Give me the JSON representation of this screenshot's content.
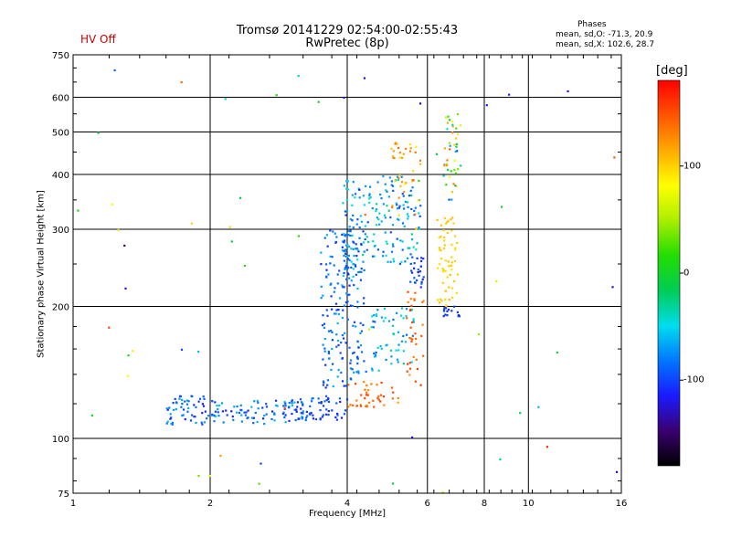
{
  "header": {
    "hv_status": "HV Off",
    "hv_color": "#cc0000",
    "title_line1": "Tromsø 20141229 02:54:00-02:55:43",
    "title_line2": "RwPretec (8p)",
    "phases_label": "Phases",
    "stats_o": "mean, sd,O: -71.3, 20.9",
    "stats_x": "mean, sd,X: 102.6, 28.7"
  },
  "colorbar": {
    "unit": "[deg]",
    "ticks": [
      {
        "label": "100",
        "value": 100
      },
      {
        "label": "0",
        "value": 0
      },
      {
        "label": "-100",
        "value": -100
      }
    ],
    "range": [
      -180,
      180
    ],
    "colormap": [
      "#000000",
      "#3a0070",
      "#1a1aff",
      "#0077ff",
      "#00ddee",
      "#00cc55",
      "#22dd00",
      "#aaee00",
      "#ffff00",
      "#ffaa00",
      "#ff5500",
      "#ff0000"
    ]
  },
  "chart_data": {
    "type": "scatter",
    "title": "Tromsø 20141229 02:54:00-02:55:43",
    "subtitle": "RwPretec (8p)",
    "xlabel": "Frequency [MHz]",
    "ylabel": "Stationary phase Virtual Height [km]",
    "x_scale": "log",
    "y_scale": "log",
    "xlim": [
      1,
      16
    ],
    "ylim": [
      75,
      750
    ],
    "x_ticks": [
      {
        "value": 1,
        "label": "1"
      },
      {
        "value": 2,
        "label": "2"
      },
      {
        "value": 4,
        "label": "4"
      },
      {
        "value": 6,
        "label": "6"
      },
      {
        "value": 8,
        "label": "8"
      },
      {
        "value": 10,
        "label": "10"
      },
      {
        "value": 16,
        "label": "16"
      }
    ],
    "y_ticks": [
      {
        "value": 75,
        "label": "75"
      },
      {
        "value": 100,
        "label": "100"
      },
      {
        "value": 200,
        "label": "200"
      },
      {
        "value": 300,
        "label": "300"
      },
      {
        "value": 400,
        "label": "400"
      },
      {
        "value": 500,
        "label": "500"
      },
      {
        "value": 600,
        "label": "600"
      },
      {
        "value": 750,
        "label": "750"
      }
    ],
    "grid": true,
    "point_groups": [
      {
        "x_range": [
          1.6,
          2.0
        ],
        "y_range": [
          107,
          125
        ],
        "phase_range": [
          -115,
          -60
        ],
        "count": 55
      },
      {
        "x_range": [
          2.0,
          3.2
        ],
        "y_range": [
          108,
          122
        ],
        "phase_range": [
          -115,
          -55
        ],
        "count": 90
      },
      {
        "x_range": [
          3.0,
          4.0
        ],
        "y_range": [
          110,
          125
        ],
        "phase_range": [
          -120,
          -80
        ],
        "count": 60
      },
      {
        "x_range": [
          3.5,
          4.4
        ],
        "y_range": [
          130,
          300
        ],
        "phase_range": [
          -110,
          -60
        ],
        "count": 180
      },
      {
        "x_range": [
          3.9,
          4.3
        ],
        "y_range": [
          230,
          390
        ],
        "phase_range": [
          -100,
          -40
        ],
        "count": 70
      },
      {
        "x_range": [
          4.3,
          5.8
        ],
        "y_range": [
          250,
          400
        ],
        "phase_range": [
          -100,
          -20
        ],
        "count": 120
      },
      {
        "x_range": [
          4.5,
          5.6
        ],
        "y_range": [
          140,
          200
        ],
        "phase_range": [
          -90,
          -30
        ],
        "count": 60
      },
      {
        "x_range": [
          4.0,
          5.2
        ],
        "y_range": [
          118,
          135
        ],
        "phase_range": [
          120,
          160
        ],
        "count": 40
      },
      {
        "x_range": [
          5.4,
          5.9
        ],
        "y_range": [
          130,
          220
        ],
        "phase_range": [
          120,
          160
        ],
        "count": 35
      },
      {
        "x_range": [
          5.5,
          5.9
        ],
        "y_range": [
          220,
          260
        ],
        "phase_range": [
          -110,
          -90
        ],
        "count": 25
      },
      {
        "x_range": [
          5.0,
          5.8
        ],
        "y_range": [
          300,
          480
        ],
        "phase_range": [
          90,
          140
        ],
        "count": 40
      },
      {
        "x_range": [
          6.3,
          7.0
        ],
        "y_range": [
          200,
          320
        ],
        "phase_range": [
          90,
          110
        ],
        "count": 60
      },
      {
        "x_range": [
          6.5,
          7.2
        ],
        "y_range": [
          190,
          200
        ],
        "phase_range": [
          -110,
          -100
        ],
        "count": 15
      },
      {
        "x_range": [
          6.5,
          7.1
        ],
        "y_range": [
          350,
          550
        ],
        "phase_range": [
          -110,
          150
        ],
        "count": 45
      },
      {
        "x_range": [
          1.0,
          16.0
        ],
        "y_range": [
          75,
          700
        ],
        "phase_range": [
          -150,
          170
        ],
        "count": 60
      }
    ]
  }
}
